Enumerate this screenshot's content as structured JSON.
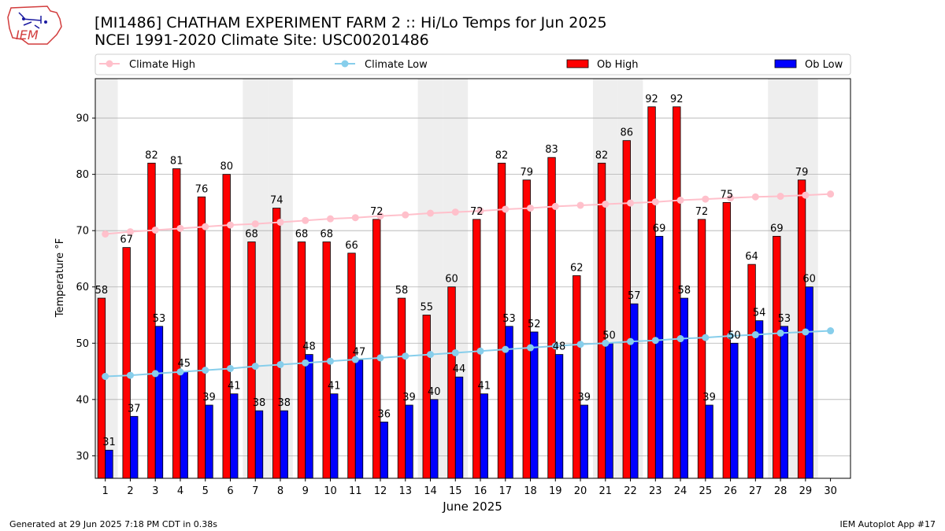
{
  "header": {
    "title_line1": "[MI1486] CHATHAM EXPERIMENT FARM 2 :: Hi/Lo Temps for Jun 2025",
    "title_line2": "NCEI 1991-2020 Climate Site: USC00201486",
    "logo_text": "IEM"
  },
  "footer": {
    "left": "Generated at 29 Jun 2025 7:18 PM CDT in 0.38s",
    "right": "IEM Autoplot App #17"
  },
  "colors": {
    "ob_high": "#ff0000",
    "ob_low": "#0000ff",
    "climate_high": "#ffc0cb",
    "climate_low": "#87ceeb",
    "weekend_shade": "#eeeeee",
    "grid": "#b0b0b0"
  },
  "chart_data": {
    "type": "bar",
    "title": "[MI1486] CHATHAM EXPERIMENT FARM 2 :: Hi/Lo Temps for Jun 2025",
    "subtitle": "NCEI 1991-2020 Climate Site: USC00201486",
    "xlabel": "June 2025",
    "ylabel": "Temperature °F",
    "ylim": [
      26,
      97
    ],
    "yticks": [
      30,
      40,
      50,
      60,
      70,
      80,
      90
    ],
    "grid": true,
    "legend_position": "top",
    "legend": [
      "Climate High",
      "Climate Low",
      "Ob High",
      "Ob Low"
    ],
    "categories": [
      "1",
      "2",
      "3",
      "4",
      "5",
      "6",
      "7",
      "8",
      "9",
      "10",
      "11",
      "12",
      "13",
      "14",
      "15",
      "16",
      "17",
      "18",
      "19",
      "20",
      "21",
      "22",
      "23",
      "24",
      "25",
      "26",
      "27",
      "28",
      "29",
      "30"
    ],
    "shaded_days": [
      1,
      7,
      8,
      14,
      15,
      21,
      22,
      28,
      29
    ],
    "series": [
      {
        "name": "Ob High",
        "kind": "bar",
        "values": [
          58,
          67,
          82,
          81,
          76,
          80,
          68,
          74,
          68,
          68,
          66,
          72,
          58,
          55,
          60,
          72,
          82,
          79,
          83,
          62,
          82,
          86,
          92,
          92,
          72,
          75,
          64,
          69,
          79,
          null
        ]
      },
      {
        "name": "Ob Low",
        "kind": "bar",
        "values": [
          31,
          37,
          53,
          45,
          39,
          41,
          38,
          38,
          48,
          41,
          47,
          36,
          39,
          40,
          44,
          41,
          53,
          52,
          48,
          39,
          50,
          57,
          69,
          58,
          39,
          50,
          54,
          53,
          60,
          null
        ]
      },
      {
        "name": "Climate High",
        "kind": "line",
        "values": [
          69.4,
          69.8,
          70.1,
          70.4,
          70.7,
          71.0,
          71.2,
          71.5,
          71.8,
          72.1,
          72.3,
          72.6,
          72.8,
          73.1,
          73.3,
          73.5,
          73.8,
          74.0,
          74.3,
          74.5,
          74.7,
          74.9,
          75.1,
          75.4,
          75.6,
          75.8,
          76.0,
          76.1,
          76.3,
          76.5
        ]
      },
      {
        "name": "Climate Low",
        "kind": "line",
        "values": [
          44.1,
          44.3,
          44.6,
          44.9,
          45.2,
          45.5,
          45.9,
          46.2,
          46.5,
          46.8,
          47.1,
          47.4,
          47.7,
          48.0,
          48.3,
          48.6,
          48.9,
          49.2,
          49.5,
          49.8,
          50.0,
          50.3,
          50.5,
          50.8,
          51.0,
          51.3,
          51.5,
          51.8,
          52.0,
          52.2
        ]
      }
    ]
  }
}
